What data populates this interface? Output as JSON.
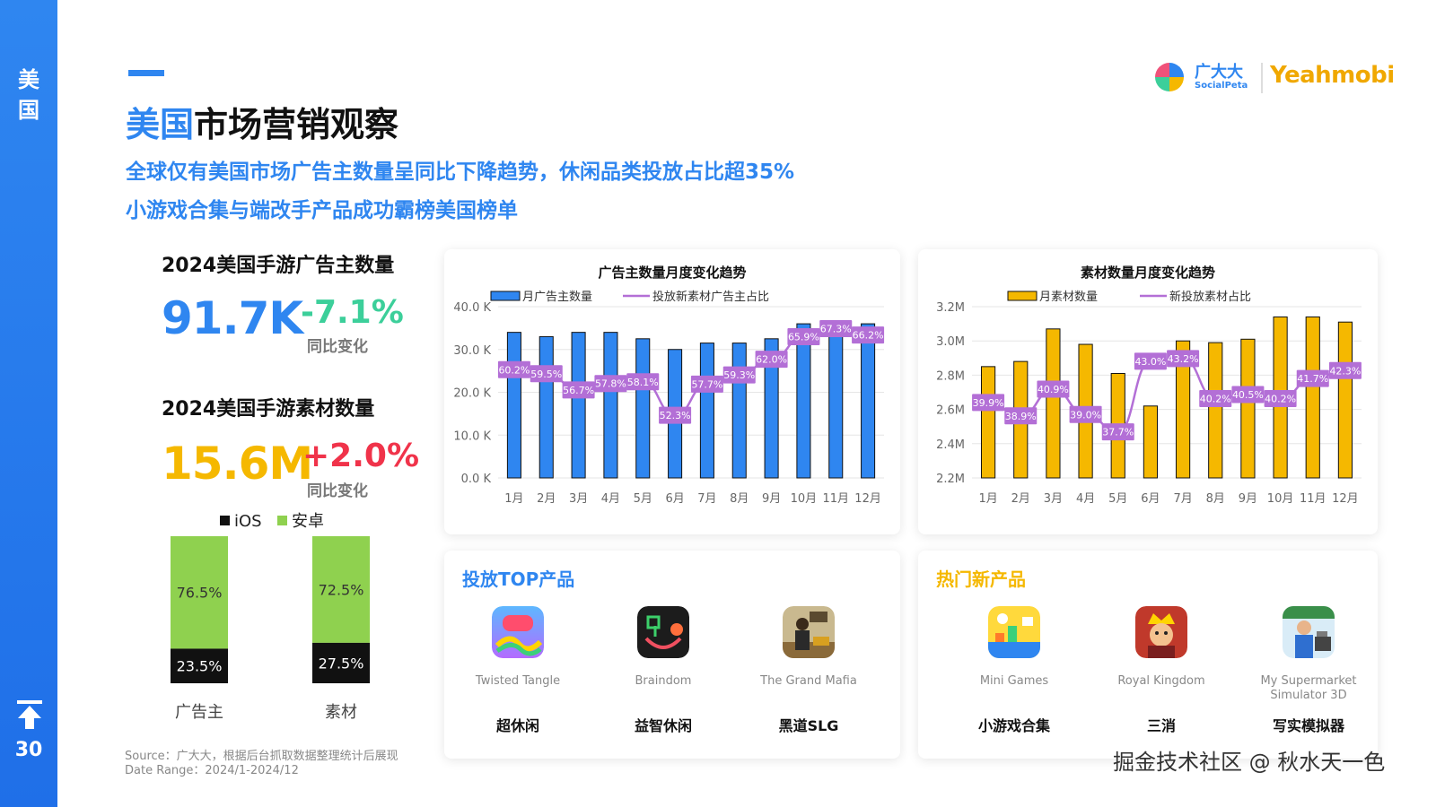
{
  "sidebar": {
    "label": "美国",
    "page_number": "30"
  },
  "header": {
    "title_accent": "美国",
    "title_rest": "市场营销观察",
    "subtitle_1": "全球仅有美国市场广告主数量呈同比下降趋势，休闲品类投放占比超35%",
    "subtitle_2": "小游戏合集与端改手产品成功霸榜美国榜单"
  },
  "logo": {
    "socialpeta_cn": "广大大",
    "socialpeta_en": "SocialPeta",
    "yeahmobi": "Yeahmobi"
  },
  "stats": {
    "advertisers": {
      "title": "2024美国手游广告主数量",
      "value": "91.7K",
      "yoy": "-7.1%",
      "yoy_label": "同比变化"
    },
    "creatives": {
      "title": "2024美国手游素材数量",
      "value": "15.6M",
      "yoy": "+2.0%",
      "yoy_label": "同比变化"
    }
  },
  "colors": {
    "blue": "#2f86f0",
    "orange": "#f5b800",
    "green": "#8fd14f",
    "purple": "#b36fd6",
    "black": "#111111"
  },
  "chart_data": [
    {
      "type": "bar",
      "categories": [
        "广告主",
        "素材"
      ],
      "legend": [
        "iOS",
        "安卓"
      ],
      "series": [
        {
          "name": "iOS",
          "values": [
            23.5,
            27.5
          ],
          "labels": [
            "23.5%",
            "27.5%"
          ]
        },
        {
          "name": "安卓",
          "values": [
            76.5,
            72.5
          ],
          "labels": [
            "76.5%",
            "72.5%"
          ]
        }
      ],
      "stacked": true,
      "ylim": [
        0,
        100
      ]
    },
    {
      "type": "bar",
      "title": "广告主数量月度变化趋势",
      "categories": [
        "1月",
        "2月",
        "3月",
        "4月",
        "5月",
        "6月",
        "7月",
        "8月",
        "9月",
        "10月",
        "11月",
        "12月"
      ],
      "series": [
        {
          "name": "月广告主数量",
          "type": "bar",
          "values": [
            34.0,
            33.0,
            34.0,
            34.0,
            32.5,
            30.0,
            31.5,
            31.5,
            32.5,
            36.0,
            35.5,
            36.0
          ]
        },
        {
          "name": "投放新素材广告主占比",
          "type": "line",
          "values": [
            60.2,
            59.5,
            56.7,
            57.8,
            58.1,
            52.3,
            57.7,
            59.3,
            62.0,
            65.9,
            67.3,
            66.2
          ],
          "labels": [
            "60.2%",
            "59.5%",
            "56.7%",
            "57.8%",
            "58.1%",
            "52.3%",
            "57.7%",
            "59.3%",
            "62.0%",
            "65.9%",
            "67.3%",
            "66.2%"
          ]
        }
      ],
      "y_ticks": [
        "0.0 K",
        "10.0 K",
        "20.0 K",
        "30.0 K",
        "40.0 K"
      ],
      "ylim": [
        0,
        40
      ],
      "legend_position": "top"
    },
    {
      "type": "bar",
      "title": "素材数量月度变化趋势",
      "categories": [
        "1月",
        "2月",
        "3月",
        "4月",
        "5月",
        "6月",
        "7月",
        "8月",
        "9月",
        "10月",
        "11月",
        "12月"
      ],
      "series": [
        {
          "name": "月素材数量",
          "type": "bar",
          "values": [
            2.85,
            2.88,
            3.07,
            2.98,
            2.81,
            2.62,
            3.0,
            2.99,
            3.01,
            3.14,
            3.14,
            3.11
          ]
        },
        {
          "name": "新投放素材占比",
          "type": "line",
          "values": [
            39.9,
            38.9,
            40.9,
            39.0,
            37.7,
            43.0,
            43.2,
            40.2,
            40.5,
            40.2,
            41.7,
            42.3
          ],
          "labels": [
            "39.9%",
            "38.9%",
            "40.9%",
            "39.0%",
            "37.7%",
            "43.0%",
            "43.2%",
            "40.2%",
            "40.5%",
            "40.2%",
            "41.7%",
            "42.3%"
          ]
        }
      ],
      "y_ticks": [
        "2.2M",
        "2.4M",
        "2.6M",
        "2.8M",
        "3.0M",
        "3.2M"
      ],
      "ylim": [
        2.2,
        3.2
      ],
      "legend_position": "top"
    }
  ],
  "top_products": {
    "title": "投放TOP产品",
    "items": [
      {
        "name": "Twisted Tangle",
        "category": "超休闲",
        "icon": "twisted-tangle-icon"
      },
      {
        "name": "Braindom",
        "category": "益智休闲",
        "icon": "braindom-icon"
      },
      {
        "name": "The Grand Mafia",
        "category": "黑道SLG",
        "icon": "grand-mafia-icon"
      }
    ]
  },
  "new_products": {
    "title": "热门新产品",
    "items": [
      {
        "name": "Mini Games",
        "category": "小游戏合集",
        "icon": "mini-games-icon"
      },
      {
        "name": "Royal Kingdom",
        "category": "三消",
        "icon": "royal-kingdom-icon"
      },
      {
        "name": "My Supermarket Simulator 3D",
        "category": "写实模拟器",
        "icon": "supermarket-simulator-icon"
      }
    ]
  },
  "footer": {
    "source": "Source：广大大，根据后台抓取数据整理统计后展现",
    "date_range": "Date Range：2024/1-2024/12",
    "watermark": "掘金技术社区 @ 秋水天一色"
  }
}
